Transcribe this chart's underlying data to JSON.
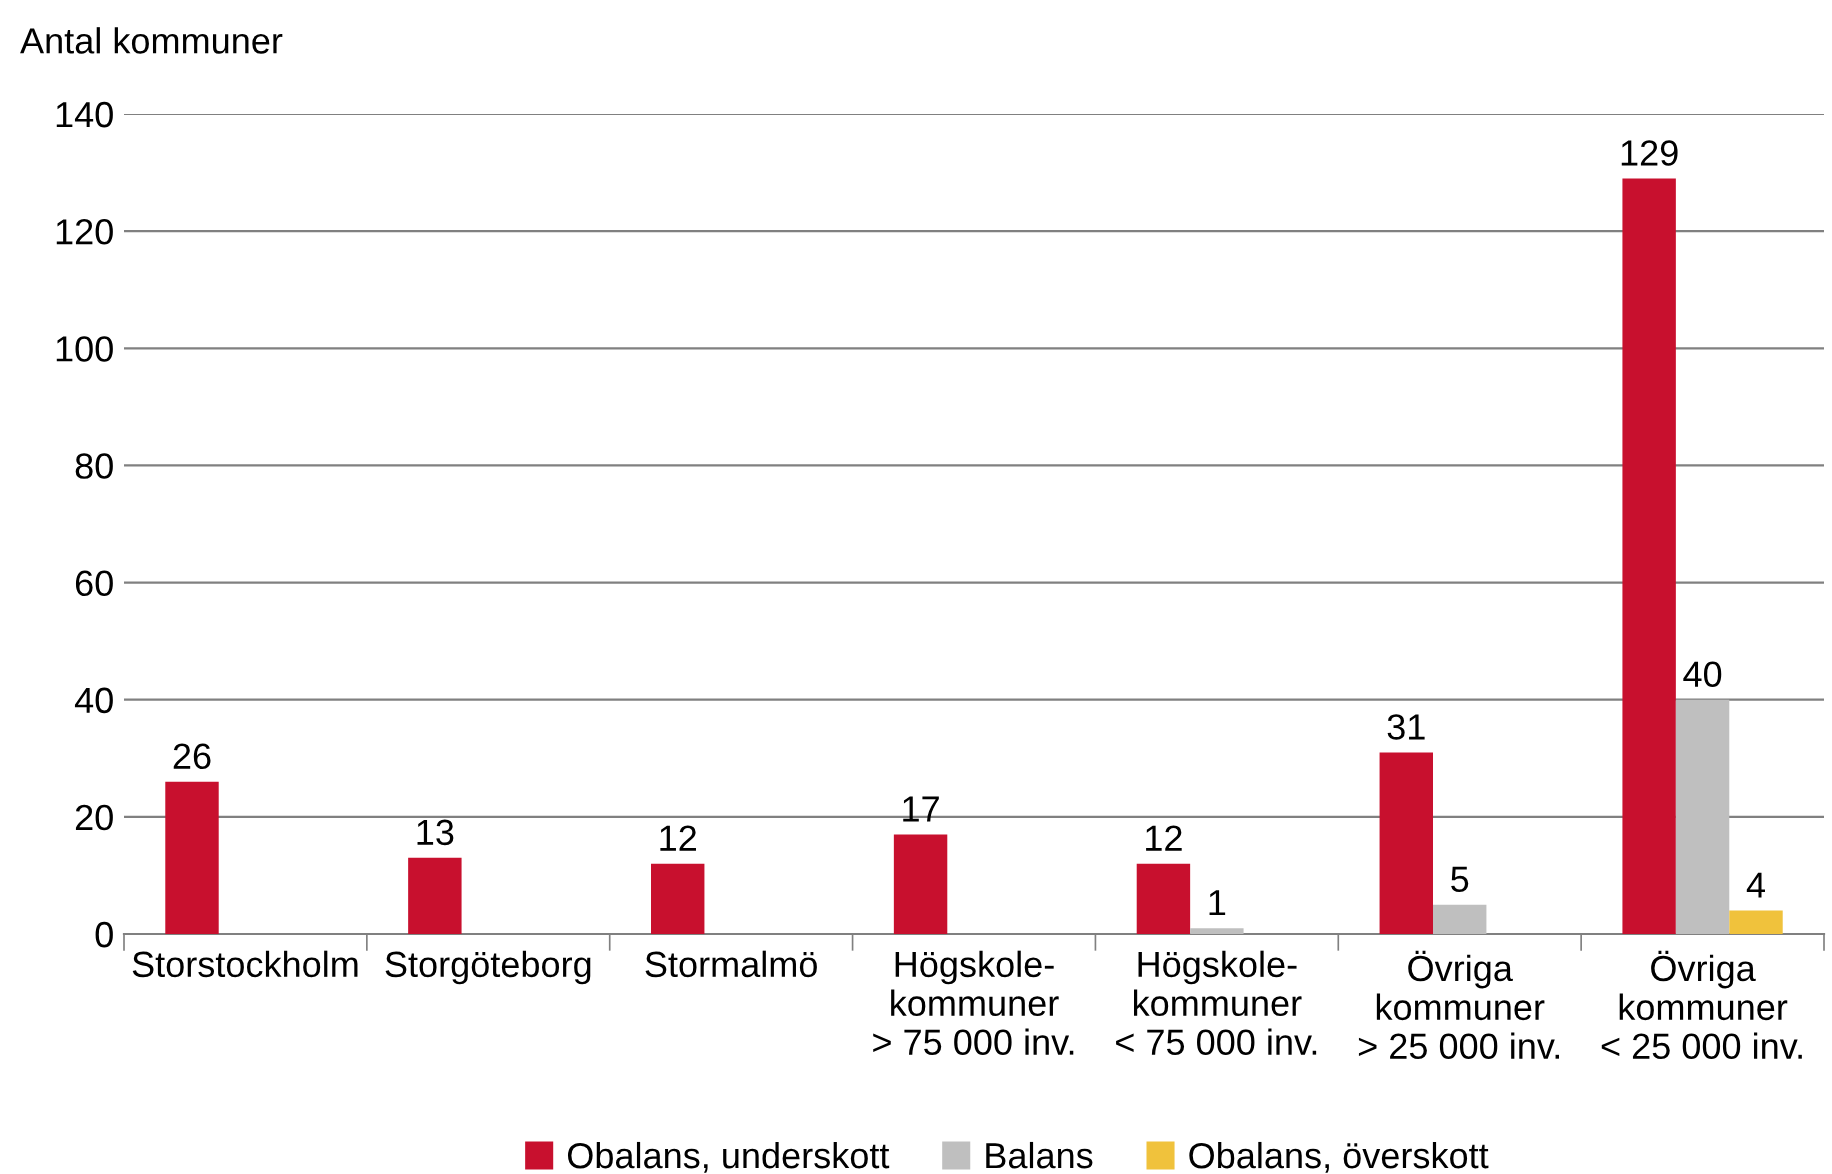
{
  "chart_data": {
    "type": "bar",
    "ylabel": "Antal kommuner",
    "categories": [
      "Storstockholm",
      "Storgöteborg",
      "Stormalmö",
      "Högskole-\nkommuner\n> 75 000 inv.",
      "Högskole-\nkommuner\n< 75 000 inv.",
      "Övriga\nkommuner\n> 25 000 inv.",
      "Övriga\nkommuner\n< 25 000 inv."
    ],
    "series": [
      {
        "name": "Obalans, underskott",
        "color": "#c8102e",
        "values": [
          26,
          13,
          12,
          17,
          12,
          31,
          129
        ]
      },
      {
        "name": "Balans",
        "color": "#bfbfbf",
        "values": [
          null,
          null,
          null,
          null,
          1,
          5,
          40
        ]
      },
      {
        "name": "Obalans, överskott",
        "color": "#f0c23c",
        "values": [
          null,
          null,
          null,
          null,
          null,
          null,
          4
        ]
      }
    ],
    "ylim": [
      0,
      140
    ],
    "yticks": [
      0,
      20,
      40,
      60,
      80,
      100,
      120,
      140
    ],
    "grid": "y",
    "legend": "bottom",
    "data_labels": true
  }
}
